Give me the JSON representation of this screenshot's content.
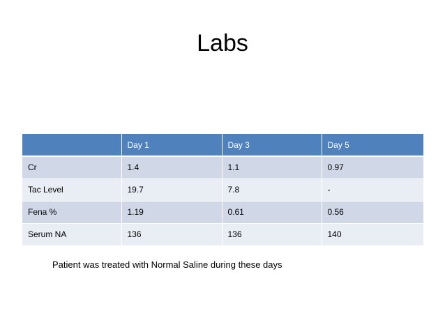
{
  "title": "Labs",
  "table": {
    "headers": [
      "",
      "Day 1",
      "Day 3",
      "Day 5"
    ],
    "rows": [
      [
        "Cr",
        "1.4",
        "1.1",
        "0.97"
      ],
      [
        "Tac Level",
        "19.7",
        "7.8",
        "-"
      ],
      [
        "Fena %",
        "1.19",
        "0.61",
        "0.56"
      ],
      [
        "Serum NA",
        "136",
        "136",
        "140"
      ]
    ]
  },
  "note": "Patient was treated with Normal Saline during these days",
  "colors": {
    "header_bg": "#4f81bd",
    "row_band_dark": "#d0d8e8",
    "row_band_light": "#e9edf4"
  }
}
